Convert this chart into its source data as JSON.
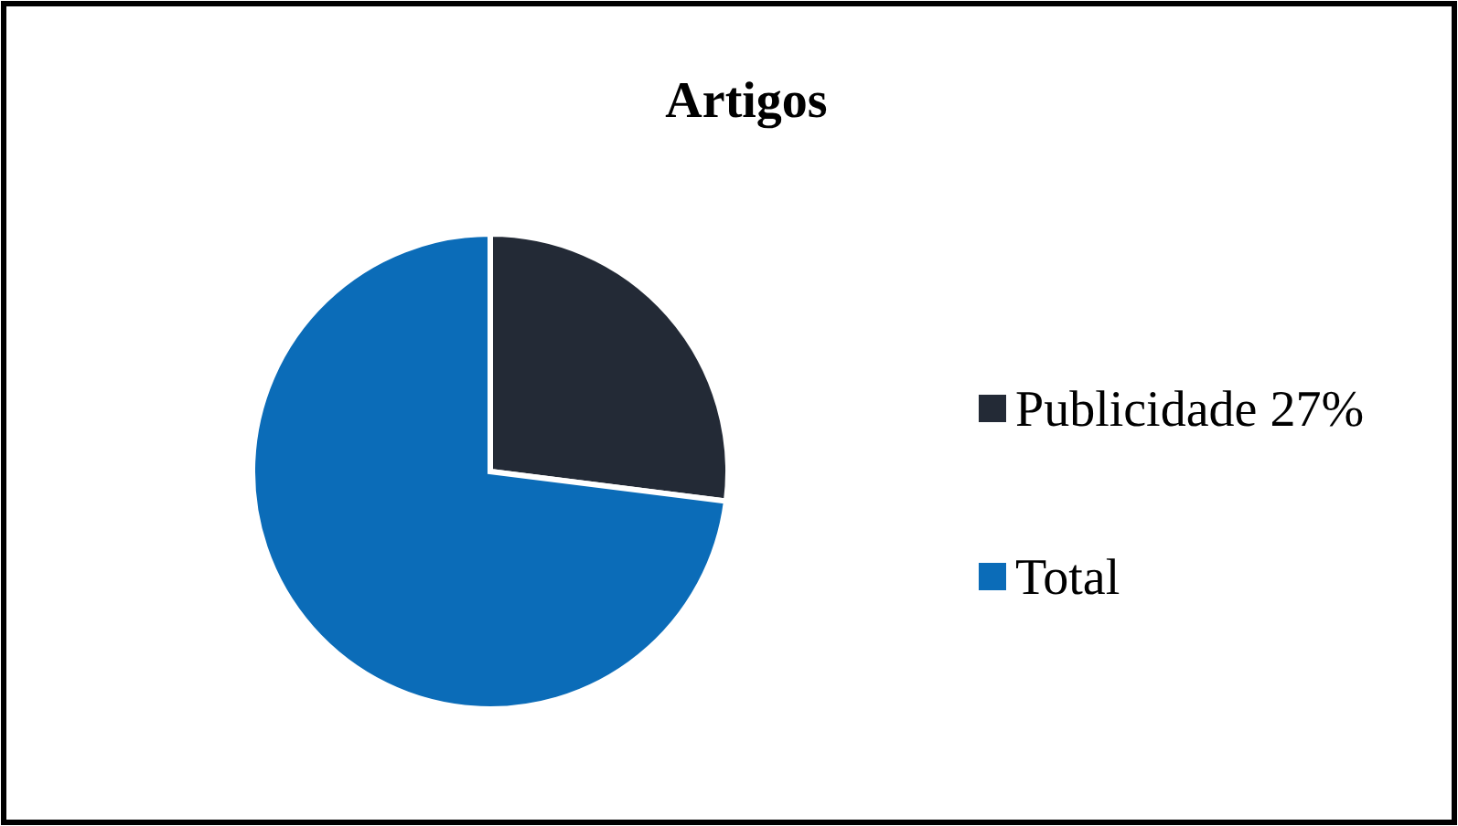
{
  "chart_data": {
    "type": "pie",
    "title": "Artigos",
    "categories": [
      "Publicidade 27%",
      "Total"
    ],
    "values": [
      27,
      73
    ],
    "colors": [
      "#232a36",
      "#0b6cb8"
    ],
    "legend": "right"
  }
}
